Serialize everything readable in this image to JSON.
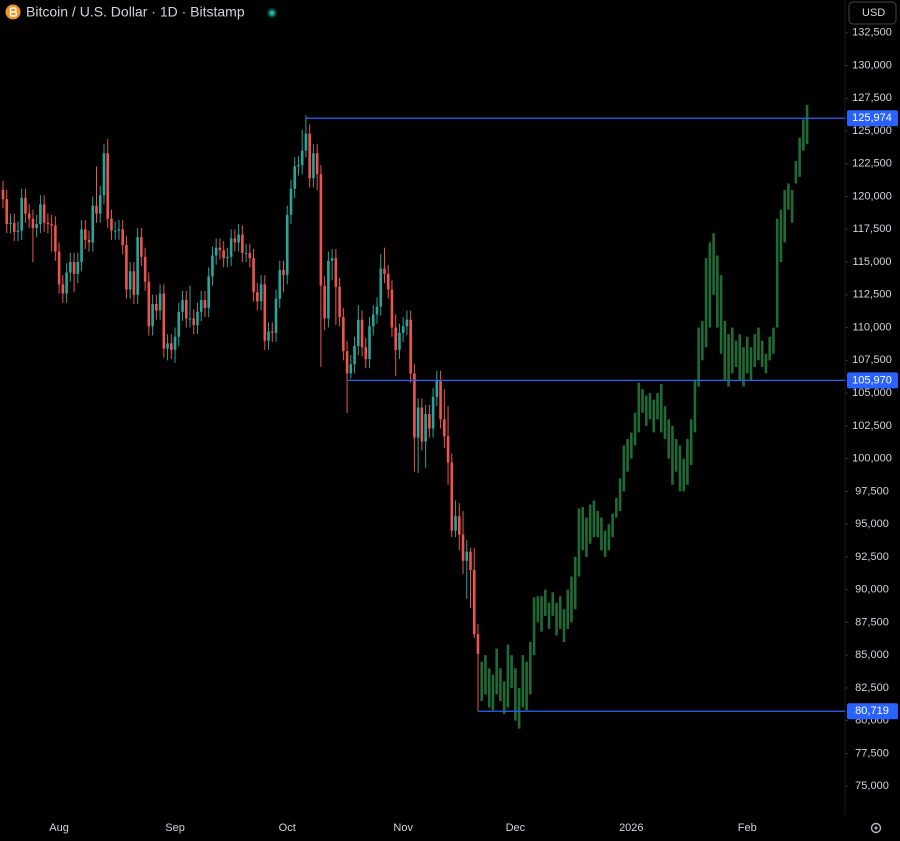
{
  "chart_data": {
    "type": "candlestick",
    "title": "Bitcoin / U.S. Dollar · 1D · Bitstamp",
    "currency": "USD",
    "categories": [
      null,
      null,
      null,
      null,
      null,
      null,
      null,
      null,
      null,
      null,
      null,
      null,
      null,
      null,
      null,
      "Aug",
      null,
      null,
      null,
      null,
      null,
      null,
      null,
      null,
      null,
      null,
      null,
      null,
      null,
      null,
      null,
      null,
      null,
      null,
      null,
      null,
      null,
      null,
      null,
      null,
      null,
      null,
      null,
      null,
      null,
      null,
      "Sep",
      null,
      null,
      null,
      null,
      null,
      null,
      null,
      null,
      null,
      null,
      null,
      null,
      null,
      null,
      null,
      null,
      null,
      null,
      null,
      null,
      null,
      null,
      null,
      null,
      null,
      null,
      null,
      null,
      null,
      "Oct",
      null,
      null,
      null,
      null,
      null,
      null,
      null,
      null,
      null,
      null,
      null,
      null,
      null,
      null,
      null,
      null,
      null,
      null,
      null,
      null,
      null,
      null,
      null,
      null,
      null,
      null,
      null,
      null,
      null,
      null,
      "Nov",
      null,
      null,
      null,
      null,
      null,
      null,
      null,
      null,
      null,
      null,
      null,
      null,
      null,
      null,
      null,
      null,
      null,
      null,
      null,
      null,
      null,
      null,
      null,
      null,
      null,
      null,
      null,
      null,
      null,
      "Dec",
      null,
      null,
      null,
      null,
      null,
      null,
      null,
      null,
      null,
      null,
      null,
      null,
      null,
      null,
      null,
      null,
      null,
      null,
      null,
      null,
      null,
      null,
      null,
      null,
      null,
      null,
      null,
      null,
      null,
      null,
      "2026",
      null,
      null,
      null,
      null,
      null,
      null,
      null,
      null,
      null,
      null,
      null,
      null,
      null,
      null,
      null,
      null,
      null,
      null,
      null,
      null,
      null,
      null,
      null,
      null,
      null,
      null,
      null,
      null,
      null,
      null,
      "Feb",
      null,
      null,
      null,
      null,
      null,
      null,
      null,
      null,
      null,
      null,
      null,
      null,
      null,
      null,
      null,
      null
    ],
    "history": {
      "up_color": "#26a69a",
      "down_color": "#ef5350",
      "open": [
        120500,
        119800,
        117900,
        118000,
        117300,
        117400,
        119900,
        118700,
        118300,
        117600,
        117900,
        119400,
        118000,
        117900,
        117800,
        115800,
        113300,
        112600,
        114200,
        115000,
        114100,
        115000,
        117500,
        116700,
        116500,
        119300,
        118700,
        120100,
        123300,
        118300,
        117400,
        117400,
        117500,
        116300,
        112900,
        114300,
        112500,
        116900,
        115400,
        113500,
        110100,
        111800,
        111300,
        112600,
        108400,
        108800,
        108300,
        109300,
        111200,
        112100,
        110700,
        110700,
        110200,
        111200,
        112100,
        111500,
        113900,
        115500,
        116100,
        115900,
        115300,
        115400,
        116800,
        116500,
        117100,
        115700,
        115700,
        115300,
        112700,
        112000,
        113300,
        109000,
        109700,
        109600,
        112200,
        114400,
        114000,
        118600,
        120600,
        122300,
        122400,
        123500,
        124800,
        121400,
        123300,
        121700,
        113200,
        110700,
        115100,
        115300,
        113100,
        110800,
        108200,
        106500,
        107200,
        108600,
        110600,
        108500,
        107600,
        110100,
        111000,
        111600,
        114500,
        114100,
        112900,
        110000,
        108300,
        109600,
        110100,
        110600,
        106500,
        101600,
        103900,
        101300,
        103400,
        102300,
        104700,
        106000,
        103000,
        101700,
        99700,
        94500,
        95600,
        94200,
        92200,
        92900,
        91500,
        86600
      ],
      "high": [
        121200,
        120500,
        118700,
        118700,
        118100,
        120600,
        120600,
        119400,
        119000,
        118600,
        120100,
        120100,
        118700,
        118600,
        118500,
        116500,
        114000,
        114900,
        115700,
        115700,
        115700,
        118200,
        118200,
        117400,
        120000,
        122300,
        120800,
        124000,
        124400,
        119000,
        118100,
        118200,
        118200,
        117000,
        115000,
        115000,
        117600,
        117600,
        116100,
        114200,
        112500,
        112500,
        113300,
        113300,
        109500,
        109500,
        110000,
        111900,
        112800,
        112800,
        113200,
        111400,
        111900,
        112800,
        112800,
        114600,
        116200,
        116800,
        116800,
        116600,
        116100,
        117500,
        117500,
        117900,
        117800,
        116400,
        116400,
        116000,
        113400,
        114000,
        114000,
        110400,
        110400,
        112900,
        115100,
        115100,
        119300,
        121300,
        123000,
        123100,
        125100,
        126200,
        125500,
        124000,
        124000,
        122400,
        113900,
        115800,
        116000,
        116000,
        113800,
        111500,
        109000,
        107900,
        109300,
        111700,
        111300,
        109200,
        110800,
        111700,
        112300,
        115600,
        116100,
        114800,
        113600,
        111000,
        110300,
        110800,
        111300,
        111300,
        107200,
        104600,
        104600,
        104100,
        104100,
        105400,
        106700,
        106700,
        105300,
        104000,
        100400,
        96800,
        96600,
        96000,
        93800,
        93200,
        93200,
        87400
      ],
      "low": [
        119100,
        117200,
        117200,
        116600,
        116600,
        116700,
        118000,
        117600,
        115000,
        116900,
        117200,
        117300,
        117200,
        115800,
        115100,
        112600,
        111900,
        111900,
        113500,
        112700,
        113400,
        114300,
        116000,
        115800,
        115800,
        118000,
        118000,
        119400,
        117600,
        116700,
        116700,
        116700,
        115600,
        112200,
        112200,
        111800,
        111800,
        114700,
        112800,
        109400,
        109400,
        110600,
        110600,
        107700,
        107500,
        107600,
        107300,
        108600,
        110500,
        110000,
        110000,
        109500,
        109500,
        110500,
        110800,
        110800,
        113200,
        114800,
        115200,
        114600,
        114600,
        114700,
        115800,
        115800,
        115000,
        115000,
        114600,
        112000,
        111300,
        111300,
        108300,
        108300,
        108900,
        108900,
        111500,
        112700,
        113300,
        117900,
        119900,
        121600,
        121700,
        123000,
        120700,
        120700,
        120500,
        107000,
        109800,
        110000,
        113600,
        110200,
        110100,
        107500,
        103500,
        106100,
        106500,
        107900,
        107800,
        106900,
        106900,
        109400,
        110300,
        110900,
        113400,
        112200,
        109300,
        106300,
        107600,
        108900,
        109400,
        105800,
        99000,
        98900,
        100600,
        99300,
        101600,
        101600,
        104000,
        102300,
        100800,
        98000,
        94000,
        94000,
        93000,
        91200,
        89300,
        88600,
        86300,
        80700
      ],
      "close": [
        119800,
        117900,
        118000,
        117300,
        117400,
        119900,
        118700,
        118300,
        117600,
        117900,
        119400,
        118000,
        117900,
        117800,
        115800,
        113300,
        112600,
        114200,
        115000,
        114100,
        115000,
        117500,
        116700,
        116500,
        119300,
        118700,
        120100,
        123300,
        118300,
        117400,
        117400,
        117500,
        116300,
        112900,
        114300,
        112500,
        116900,
        115400,
        113500,
        110100,
        111800,
        111300,
        112600,
        108400,
        108800,
        108300,
        109300,
        111200,
        112100,
        110700,
        110700,
        110200,
        111200,
        112100,
        111500,
        113900,
        115500,
        116100,
        115900,
        115300,
        115400,
        116800,
        116500,
        117100,
        115700,
        115700,
        115300,
        112700,
        112000,
        113300,
        109000,
        109700,
        109600,
        112200,
        114400,
        114000,
        118600,
        120600,
        122300,
        122400,
        123500,
        124800,
        121400,
        123300,
        121700,
        113200,
        110700,
        115100,
        115300,
        113100,
        110800,
        108200,
        106500,
        107200,
        108600,
        110600,
        108500,
        107600,
        110100,
        111000,
        111600,
        114500,
        114100,
        112900,
        110000,
        108300,
        109600,
        110100,
        110600,
        106500,
        101600,
        103900,
        101300,
        103400,
        102300,
        104700,
        106000,
        103000,
        101700,
        99700,
        94500,
        95600,
        94200,
        92200,
        92900,
        91500,
        86600,
        85100
      ]
    },
    "projection": {
      "color": "#1e6b35",
      "low": [
        81500,
        82000,
        81000,
        80800,
        82000,
        81500,
        80500,
        81000,
        82500,
        80000,
        79400,
        81000,
        80800,
        82000,
        85000,
        87500,
        86800,
        88000,
        87000,
        88000,
        86500,
        87000,
        86000,
        87000,
        87500,
        88500,
        91000,
        93000,
        92500,
        93500,
        94000,
        94000,
        93000,
        92500,
        93000,
        94000,
        95500,
        96000,
        97500,
        99000,
        100000,
        101000,
        102000,
        103500,
        102500,
        103000,
        102000,
        103000,
        102000,
        101500,
        100000,
        98000,
        99000,
        97500,
        97500,
        98000,
        99500,
        102000,
        105500,
        107500,
        108500,
        110000,
        112500,
        110000,
        108000,
        106000,
        105500,
        106500,
        107000,
        106000,
        105500,
        106500,
        106000,
        107000,
        107500,
        107000,
        106500,
        107500,
        108000,
        110000,
        115000,
        116500,
        119000,
        118000,
        121000,
        121500,
        123500,
        124000
      ],
      "high": [
        84500,
        85000,
        84000,
        83500,
        85500,
        84000,
        83000,
        85800,
        85000,
        84000,
        82500,
        85000,
        84500,
        86000,
        89400,
        89500,
        89500,
        90000,
        89000,
        89800,
        89000,
        89500,
        88500,
        90000,
        91000,
        92500,
        96200,
        96300,
        95500,
        96500,
        96800,
        96000,
        95500,
        94500,
        95000,
        95800,
        97000,
        98500,
        101000,
        101500,
        102000,
        103500,
        105800,
        105300,
        104800,
        105000,
        104500,
        105000,
        105700,
        104000,
        103000,
        102500,
        101500,
        101000,
        100000,
        101500,
        103000,
        106000,
        110000,
        110500,
        115300,
        116500,
        117200,
        115500,
        114000,
        110500,
        109500,
        110000,
        109000,
        109500,
        108500,
        109300,
        108500,
        109500,
        110000,
        109000,
        108000,
        109300,
        110000,
        118300,
        119000,
        120500,
        121000,
        120500,
        122700,
        124500,
        125900,
        127000
      ]
    },
    "levels": [
      {
        "value": 125974,
        "label": "125,974"
      },
      {
        "value": 105970,
        "label": "105,970"
      },
      {
        "value": 80719,
        "label": "80,719"
      }
    ],
    "level_color": "#2962ff",
    "ylim": [
      72800,
      135000
    ],
    "yticks": [
      {
        "value": 75000,
        "label": "75,000"
      },
      {
        "value": 77500,
        "label": "77,500"
      },
      {
        "value": 80000,
        "label": "80,000"
      },
      {
        "value": 82500,
        "label": "82,500"
      },
      {
        "value": 85000,
        "label": "85,000"
      },
      {
        "value": 87500,
        "label": "87,500"
      },
      {
        "value": 90000,
        "label": "90,000"
      },
      {
        "value": 92500,
        "label": "92,500"
      },
      {
        "value": 95000,
        "label": "95,000"
      },
      {
        "value": 97500,
        "label": "97,500"
      },
      {
        "value": 100000,
        "label": "100,000"
      },
      {
        "value": 102500,
        "label": "102,500"
      },
      {
        "value": 105000,
        "label": "105,000"
      },
      {
        "value": 107500,
        "label": "107,500"
      },
      {
        "value": 110000,
        "label": "110,000"
      },
      {
        "value": 112500,
        "label": "112,500"
      },
      {
        "value": 115000,
        "label": "115,000"
      },
      {
        "value": 117500,
        "label": "117,500"
      },
      {
        "value": 120000,
        "label": "120,000"
      },
      {
        "value": 122500,
        "label": "122,500"
      },
      {
        "value": 125000,
        "label": "125,000"
      },
      {
        "value": 127500,
        "label": "127,500"
      },
      {
        "value": 130000,
        "label": "130,000"
      },
      {
        "value": 132500,
        "label": "132,500"
      }
    ],
    "grid": false
  }
}
